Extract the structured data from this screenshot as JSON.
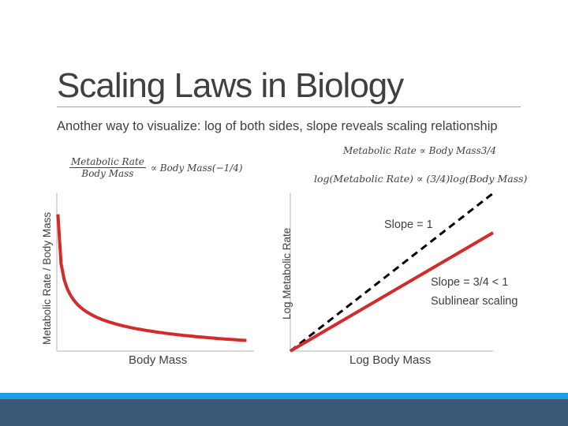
{
  "slide": {
    "title": "Scaling Laws in Biology",
    "subtitle": "Another way to visualize: log of both sides, slope reveals scaling relationship",
    "colors": {
      "accent_light": "#1da1dc",
      "accent_dark": "#3a5a78",
      "curve": "#d42a2a",
      "axis": "#d9d9d9"
    }
  },
  "formulas": {
    "left_numerator": "Metabolic Rate",
    "left_denominator": "Body Mass",
    "left_rest": "∝ Body Mass(−1/4)",
    "right_top": "Metabolic Rate ∝ Body Mass3/4",
    "right_log": "log(Metabolic Rate) ∝ (3/4)log(Body Mass)"
  },
  "chart_data": [
    {
      "type": "line",
      "xlabel": "Body Mass",
      "ylabel": "Metabolic Rate / Body Mass",
      "x": [
        0.15,
        0.3,
        0.6,
        1,
        2,
        3,
        5,
        8,
        12,
        16,
        20,
        25
      ],
      "series": [
        {
          "values": [
            1.61,
            1.35,
            1.14,
            1.0,
            0.84,
            0.76,
            0.67,
            0.59,
            0.54,
            0.5,
            0.47,
            0.45
          ]
        }
      ],
      "xlim": [
        0,
        26
      ],
      "ylim": [
        0.35,
        1.8
      ],
      "grid": false
    },
    {
      "type": "line",
      "xlabel": "Log Body Mass",
      "ylabel": "Log Metabolic Rate",
      "x": [
        0,
        1
      ],
      "series": [
        {
          "values": [
            0,
            1
          ],
          "style": "dashed",
          "color": "#000000"
        },
        {
          "values": [
            0,
            0.75
          ],
          "color": "#d42a2a"
        }
      ],
      "xlim": [
        0,
        1
      ],
      "ylim": [
        0,
        1
      ],
      "grid": false,
      "annotations": [
        "Slope = 1",
        "Slope = 3/4 < 1",
        "Sublinear scaling"
      ]
    }
  ]
}
